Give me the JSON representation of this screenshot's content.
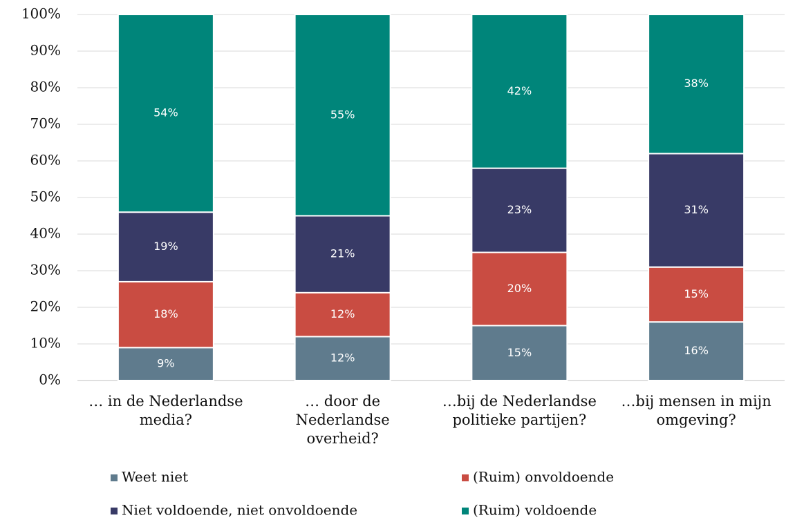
{
  "chart_data": {
    "type": "stacked_bar",
    "categories": [
      "… in de Nederlandse media?",
      "… door de Nederlandse overheid?",
      "…bij de Nederlandse politieke partijen?",
      "…bij mensen in mijn omgeving?"
    ],
    "series": [
      {
        "name": "Weet niet",
        "color": "#5f7b8d",
        "values": [
          9,
          12,
          15,
          16
        ],
        "value_labels": [
          "9%",
          "12%",
          "15%",
          "16%"
        ]
      },
      {
        "name": "(Ruim) onvoldoende",
        "color": "#c94c42",
        "values": [
          18,
          12,
          20,
          15
        ],
        "value_labels": [
          "18%",
          "12%",
          "20%",
          "15%"
        ]
      },
      {
        "name": "Niet voldoende, niet onvoldoende",
        "color": "#383a66",
        "values": [
          19,
          21,
          23,
          31
        ],
        "value_labels": [
          "19%",
          "21%",
          "23%",
          "31%"
        ]
      },
      {
        "name": "(Ruim) voldoende",
        "color": "#00857a",
        "values": [
          54,
          55,
          42,
          38
        ],
        "value_labels": [
          "54%",
          "55%",
          "42%",
          "38%"
        ]
      }
    ],
    "ylim": [
      0,
      100
    ],
    "yticks": [
      {
        "value": 0,
        "label": "0%"
      },
      {
        "value": 10,
        "label": "10%"
      },
      {
        "value": 20,
        "label": "20%"
      },
      {
        "value": 30,
        "label": "30%"
      },
      {
        "value": 40,
        "label": "40%"
      },
      {
        "value": 50,
        "label": "50%"
      },
      {
        "value": 60,
        "label": "60%"
      },
      {
        "value": 70,
        "label": "70%"
      },
      {
        "value": 80,
        "label": "80%"
      },
      {
        "value": 90,
        "label": "90%"
      },
      {
        "value": 100,
        "label": "100%"
      }
    ],
    "grid": true,
    "legend": "bottom"
  }
}
